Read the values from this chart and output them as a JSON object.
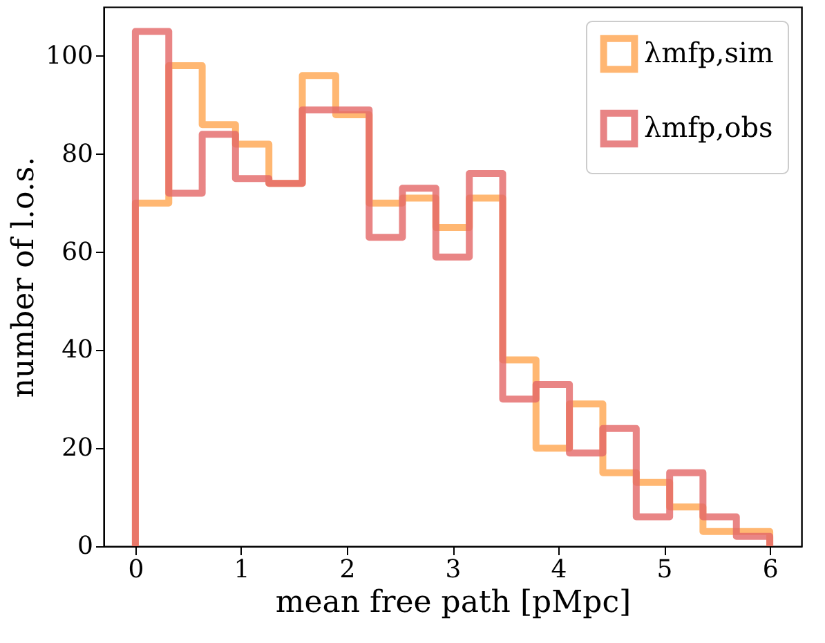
{
  "chart_data": {
    "type": "histogram",
    "xlabel": "mean free path [pMpc]",
    "ylabel": "number of l.o.s.",
    "bins": [
      0,
      0.316,
      0.632,
      0.947,
      1.263,
      1.579,
      1.895,
      2.211,
      2.526,
      2.842,
      3.158,
      3.474,
      3.789,
      4.105,
      4.421,
      4.737,
      5.053,
      5.368,
      5.684,
      6
    ],
    "series": [
      {
        "name": "λmfp,sim",
        "color": "#ffa54f",
        "values": [
          70,
          98,
          86,
          82,
          74,
          96,
          88,
          70,
          71,
          65,
          71,
          38,
          20,
          29,
          15,
          13,
          8,
          3,
          3
        ]
      },
      {
        "name": "λmfp,obs",
        "color": "#e36667",
        "values": [
          105,
          72,
          84,
          75,
          74,
          89,
          89,
          63,
          73,
          59,
          76,
          30,
          33,
          19,
          24,
          6,
          15,
          6,
          2
        ]
      }
    ],
    "xlim": [
      -0.3,
      6.3
    ],
    "ylim": [
      0,
      110
    ],
    "xticks": [
      0,
      1,
      2,
      3,
      4,
      5,
      6
    ],
    "yticks": [
      0,
      20,
      40,
      60,
      80,
      100
    ],
    "grid": false,
    "legend": "top right"
  }
}
